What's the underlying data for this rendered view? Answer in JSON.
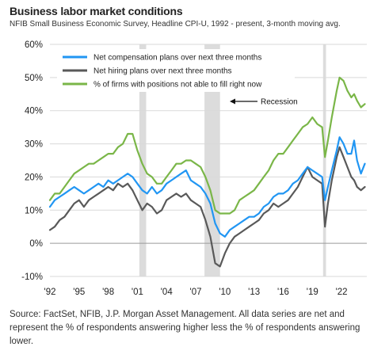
{
  "header": {
    "title": "Business labor market conditions",
    "subtitle": "NFIB Small Business Economic Survey, Headline CPI-U, 1992 - present, 3-month moving avg."
  },
  "footnote": "Source: FactSet, NFIB, J.P. Morgan Asset Management. All data series are net and represent the % of respondents answering higher less the % of respondents answering lower.",
  "chart_data": {
    "type": "line",
    "x_tick_labels": [
      "'92",
      "'95",
      "'98",
      "'01",
      "'04",
      "'07",
      "'10",
      "'13",
      "'16",
      "'19",
      "'22"
    ],
    "x_ticks": [
      1992,
      1995,
      1998,
      2001,
      2004,
      2007,
      2010,
      2013,
      2016,
      2019,
      2022
    ],
    "xlim": [
      1992,
      2024.6
    ],
    "y_ticks": [
      -10,
      0,
      10,
      20,
      30,
      40,
      50,
      60
    ],
    "y_tick_labels": [
      "-10%",
      "0%",
      "10%",
      "20%",
      "30%",
      "40%",
      "50%",
      "60%"
    ],
    "ylim": [
      -10,
      60
    ],
    "grid": "horizontal",
    "legend_position": "top-left",
    "recessions": [
      [
        2001.2,
        2001.9
      ],
      [
        2007.9,
        2009.5
      ],
      [
        2020.1,
        2020.4
      ]
    ],
    "annotation": "Recession",
    "colors": {
      "compensation": "#2196f3",
      "hiring": "#595959",
      "unfilled": "#7ab648",
      "recession": "#dcdcdc",
      "grid": "#d9d9d9"
    },
    "series": [
      {
        "key": "compensation",
        "name": "Net compensation plans over next three months",
        "color": "#2196f3",
        "points": [
          [
            1992.0,
            11
          ],
          [
            1992.5,
            13
          ],
          [
            1993.0,
            14
          ],
          [
            1993.5,
            15
          ],
          [
            1994.0,
            16
          ],
          [
            1994.5,
            17
          ],
          [
            1995.0,
            16
          ],
          [
            1995.5,
            15
          ],
          [
            1996.0,
            16
          ],
          [
            1996.5,
            17
          ],
          [
            1997.0,
            18
          ],
          [
            1997.5,
            17
          ],
          [
            1998.0,
            19
          ],
          [
            1998.5,
            18
          ],
          [
            1999.0,
            19
          ],
          [
            1999.5,
            20
          ],
          [
            2000.0,
            21
          ],
          [
            2000.5,
            20
          ],
          [
            2001.0,
            18
          ],
          [
            2001.5,
            16
          ],
          [
            2002.0,
            15
          ],
          [
            2002.5,
            17
          ],
          [
            2003.0,
            15
          ],
          [
            2003.5,
            16
          ],
          [
            2004.0,
            18
          ],
          [
            2004.5,
            19
          ],
          [
            2005.0,
            20
          ],
          [
            2005.5,
            21
          ],
          [
            2006.0,
            22
          ],
          [
            2006.5,
            19
          ],
          [
            2007.0,
            18
          ],
          [
            2007.5,
            17
          ],
          [
            2008.0,
            15
          ],
          [
            2008.5,
            12
          ],
          [
            2009.0,
            6
          ],
          [
            2009.5,
            3
          ],
          [
            2010.0,
            2
          ],
          [
            2010.5,
            4
          ],
          [
            2011.0,
            5
          ],
          [
            2011.5,
            6
          ],
          [
            2012.0,
            7
          ],
          [
            2012.5,
            8
          ],
          [
            2013.0,
            8
          ],
          [
            2013.5,
            9
          ],
          [
            2014.0,
            11
          ],
          [
            2014.5,
            12
          ],
          [
            2015.0,
            14
          ],
          [
            2015.5,
            15
          ],
          [
            2016.0,
            15
          ],
          [
            2016.5,
            16
          ],
          [
            2017.0,
            18
          ],
          [
            2017.5,
            19
          ],
          [
            2018.0,
            21
          ],
          [
            2018.5,
            23
          ],
          [
            2019.0,
            22
          ],
          [
            2019.5,
            21
          ],
          [
            2020.0,
            20
          ],
          [
            2020.3,
            13
          ],
          [
            2020.6,
            17
          ],
          [
            2021.0,
            22
          ],
          [
            2021.5,
            28
          ],
          [
            2021.8,
            32
          ],
          [
            2022.2,
            30
          ],
          [
            2022.6,
            27
          ],
          [
            2023.0,
            27
          ],
          [
            2023.3,
            31
          ],
          [
            2023.6,
            25
          ],
          [
            2024.0,
            21
          ],
          [
            2024.4,
            24
          ]
        ]
      },
      {
        "key": "hiring",
        "name": "Net hiring plans over next three months",
        "color": "#595959",
        "points": [
          [
            1992.0,
            4
          ],
          [
            1992.5,
            5
          ],
          [
            1993.0,
            7
          ],
          [
            1993.5,
            8
          ],
          [
            1994.0,
            10
          ],
          [
            1994.5,
            12
          ],
          [
            1995.0,
            13
          ],
          [
            1995.5,
            11
          ],
          [
            1996.0,
            13
          ],
          [
            1996.5,
            14
          ],
          [
            1997.0,
            15
          ],
          [
            1997.5,
            16
          ],
          [
            1998.0,
            17
          ],
          [
            1998.5,
            16
          ],
          [
            1999.0,
            18
          ],
          [
            1999.5,
            17
          ],
          [
            2000.0,
            18
          ],
          [
            2000.5,
            16
          ],
          [
            2001.0,
            13
          ],
          [
            2001.5,
            10
          ],
          [
            2002.0,
            12
          ],
          [
            2002.5,
            11
          ],
          [
            2003.0,
            9
          ],
          [
            2003.5,
            10
          ],
          [
            2004.0,
            13
          ],
          [
            2004.5,
            14
          ],
          [
            2005.0,
            15
          ],
          [
            2005.5,
            14
          ],
          [
            2006.0,
            15
          ],
          [
            2006.5,
            13
          ],
          [
            2007.0,
            12
          ],
          [
            2007.5,
            11
          ],
          [
            2008.0,
            7
          ],
          [
            2008.5,
            2
          ],
          [
            2009.0,
            -6
          ],
          [
            2009.5,
            -7
          ],
          [
            2010.0,
            -3
          ],
          [
            2010.5,
            0
          ],
          [
            2011.0,
            2
          ],
          [
            2011.5,
            3
          ],
          [
            2012.0,
            4
          ],
          [
            2012.5,
            5
          ],
          [
            2013.0,
            6
          ],
          [
            2013.5,
            7
          ],
          [
            2014.0,
            9
          ],
          [
            2014.5,
            10
          ],
          [
            2015.0,
            12
          ],
          [
            2015.5,
            11
          ],
          [
            2016.0,
            12
          ],
          [
            2016.5,
            13
          ],
          [
            2017.0,
            15
          ],
          [
            2017.5,
            17
          ],
          [
            2018.0,
            20
          ],
          [
            2018.5,
            23
          ],
          [
            2019.0,
            20
          ],
          [
            2019.5,
            19
          ],
          [
            2020.0,
            18
          ],
          [
            2020.3,
            5
          ],
          [
            2020.6,
            12
          ],
          [
            2021.0,
            19
          ],
          [
            2021.5,
            26
          ],
          [
            2021.8,
            29
          ],
          [
            2022.2,
            26
          ],
          [
            2022.6,
            23
          ],
          [
            2023.0,
            20
          ],
          [
            2023.3,
            19
          ],
          [
            2023.6,
            17
          ],
          [
            2024.0,
            16
          ],
          [
            2024.4,
            17
          ]
        ]
      },
      {
        "key": "unfilled",
        "name": "% of firms with positions not able to fill right now",
        "color": "#7ab648",
        "points": [
          [
            1992.0,
            13
          ],
          [
            1992.5,
            15
          ],
          [
            1993.0,
            15
          ],
          [
            1993.5,
            17
          ],
          [
            1994.0,
            19
          ],
          [
            1994.5,
            21
          ],
          [
            1995.0,
            22
          ],
          [
            1995.5,
            23
          ],
          [
            1996.0,
            24
          ],
          [
            1996.5,
            24
          ],
          [
            1997.0,
            25
          ],
          [
            1997.5,
            26
          ],
          [
            1998.0,
            27
          ],
          [
            1998.5,
            27
          ],
          [
            1999.0,
            29
          ],
          [
            1999.5,
            30
          ],
          [
            2000.0,
            33
          ],
          [
            2000.5,
            33
          ],
          [
            2001.0,
            28
          ],
          [
            2001.5,
            24
          ],
          [
            2002.0,
            21
          ],
          [
            2002.5,
            20
          ],
          [
            2003.0,
            18
          ],
          [
            2003.5,
            18
          ],
          [
            2004.0,
            20
          ],
          [
            2004.5,
            22
          ],
          [
            2005.0,
            24
          ],
          [
            2005.5,
            24
          ],
          [
            2006.0,
            25
          ],
          [
            2006.5,
            25
          ],
          [
            2007.0,
            24
          ],
          [
            2007.5,
            23
          ],
          [
            2008.0,
            20
          ],
          [
            2008.5,
            16
          ],
          [
            2009.0,
            10
          ],
          [
            2009.5,
            9
          ],
          [
            2010.0,
            9
          ],
          [
            2010.5,
            9
          ],
          [
            2011.0,
            10
          ],
          [
            2011.5,
            13
          ],
          [
            2012.0,
            14
          ],
          [
            2012.5,
            15
          ],
          [
            2013.0,
            16
          ],
          [
            2013.5,
            18
          ],
          [
            2014.0,
            20
          ],
          [
            2014.5,
            22
          ],
          [
            2015.0,
            25
          ],
          [
            2015.5,
            27
          ],
          [
            2016.0,
            27
          ],
          [
            2016.5,
            29
          ],
          [
            2017.0,
            31
          ],
          [
            2017.5,
            33
          ],
          [
            2018.0,
            35
          ],
          [
            2018.5,
            36
          ],
          [
            2019.0,
            38
          ],
          [
            2019.5,
            36
          ],
          [
            2020.0,
            35
          ],
          [
            2020.3,
            26
          ],
          [
            2020.6,
            31
          ],
          [
            2021.0,
            38
          ],
          [
            2021.5,
            46
          ],
          [
            2021.8,
            50
          ],
          [
            2022.2,
            49
          ],
          [
            2022.6,
            46
          ],
          [
            2023.0,
            44
          ],
          [
            2023.3,
            45
          ],
          [
            2023.6,
            43
          ],
          [
            2024.0,
            41
          ],
          [
            2024.4,
            42
          ]
        ]
      }
    ]
  }
}
